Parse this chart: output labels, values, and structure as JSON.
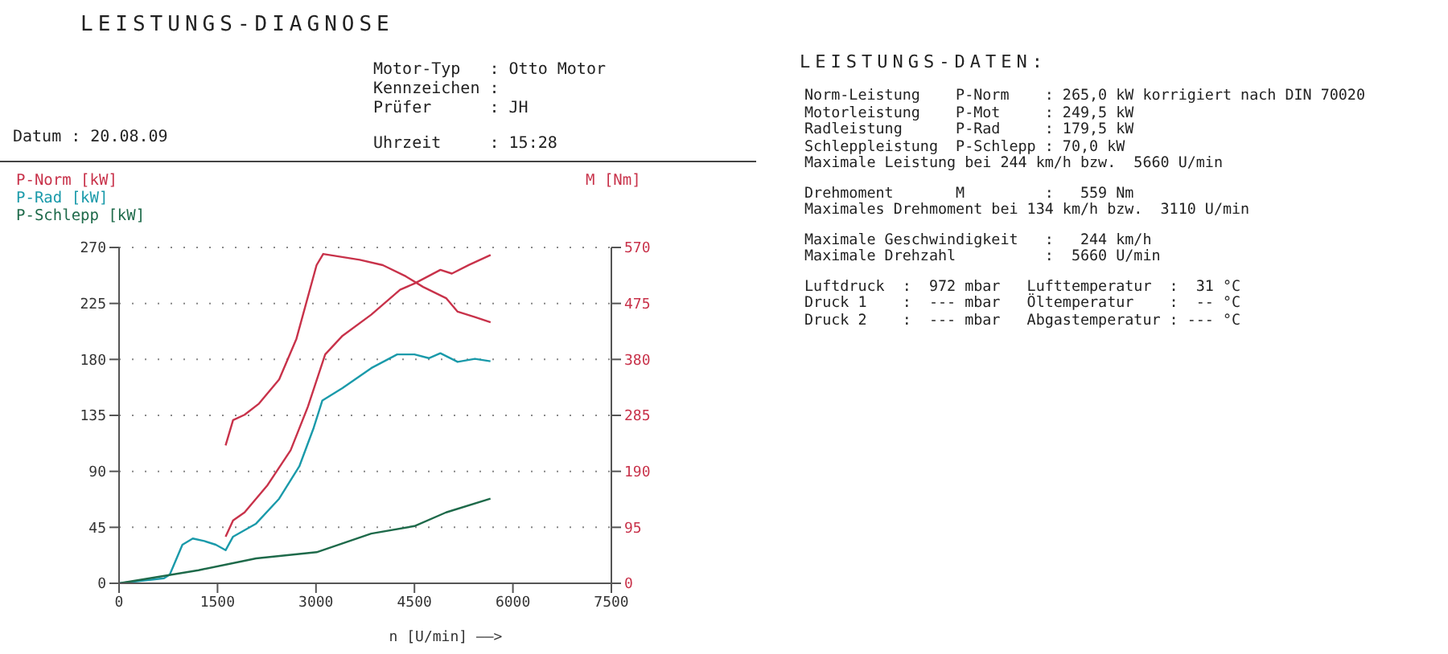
{
  "chart_data": {
    "type": "line",
    "title": "LEISTUNGS-DIAGNOSE",
    "subtitle": "LEISTUNGS-DATEN:",
    "xlabel": "n [U/min] ——>",
    "y2label": "M [Nm]",
    "annotations": [
      "Datum : 20.08.09",
      "Motor-Typ   : Otto Motor",
      "Kennzeichen :",
      "Prüfer      : JH",
      "Uhrzeit     : 15:28",
      "Norm-Leistung    P-Norm    : 265,0 kW korrigiert nach DIN 70020",
      "Motorleistung    P-Mot     : 249,5 kW",
      "Radleistung      P-Rad     : 179,5 kW",
      "Schleppleistung  P-Schlepp : 70,0 kW",
      "Maximale Leistung bei 244 km/h bzw.  5660 U/min",
      "Drehmoment       M         :   559 Nm",
      "Maximales Drehmoment bei 134 km/h bzw.  3110 U/min",
      "Maximale Geschwindigkeit   :   244 km/h",
      "Maximale Drehzahl          :  5660 U/min",
      "Luftdruck  :  972 mbar   Lufttemperatur  :  31 °C",
      "Druck 1    :  --- mbar   Öltemperatur    :  -- °C",
      "Druck 2    :  --- mbar   Abgastemperatur : --- °C"
    ],
    "xlim": [
      0,
      7500
    ],
    "xticks": [
      0,
      1500,
      3000,
      4500,
      6000,
      7500
    ],
    "ylim": [
      0,
      270
    ],
    "yticks": [
      0,
      45,
      90,
      135,
      180,
      225,
      270
    ],
    "y2lim": [
      0,
      570
    ],
    "y2ticks": [
      0,
      95,
      190,
      285,
      380,
      475,
      570
    ],
    "grid": "y",
    "legend": "top",
    "marker": "none",
    "line_style": "solid",
    "series": [
      {
        "name": "P-Norm [kW]",
        "color": "#c8324a",
        "x": [
          1623,
          1737,
          1912,
          2263,
          2614,
          2877,
          3140,
          3404,
          3842,
          4281,
          4500,
          4895,
          5070,
          5333,
          5660
        ],
        "values": [
          37.5,
          50.6,
          57,
          79,
          107,
          142,
          184,
          199,
          216,
          236,
          241,
          252,
          249,
          256,
          264
        ]
      },
      {
        "name": "P-Rad [kW]",
        "color": "#1a9aaa",
        "x": [
          0,
          684,
          772,
          965,
          1123,
          1298,
          1474,
          1623,
          1737,
          2088,
          2439,
          2746,
          2965,
          3097,
          3404,
          3842,
          4237,
          4500,
          4719,
          4895,
          5158,
          5421,
          5658
        ],
        "values": [
          0,
          4,
          7,
          31,
          36,
          34,
          31,
          26.6,
          37.5,
          48,
          68,
          94,
          125,
          147,
          157,
          173,
          184,
          184,
          181,
          185,
          178,
          180.5,
          178.5
        ]
      },
      {
        "name": "P-Schlepp [kW]",
        "color": "#1e6a4a",
        "x": [
          0,
          1210,
          2088,
          3009,
          3842,
          4500,
          4982,
          5658
        ],
        "values": [
          0,
          10.5,
          20,
          25,
          40,
          46,
          57,
          68
        ]
      },
      {
        "color": "#c8324a",
        "axis": "y2",
        "x": [
          1623,
          1737,
          1912,
          2132,
          2439,
          2702,
          3009,
          3110,
          3667,
          4018,
          4368,
          4632,
          4982,
          5158,
          5421,
          5660
        ],
        "values": [
          234,
          277,
          286,
          305,
          346,
          415,
          540,
          559,
          549,
          540,
          521,
          503,
          484,
          461,
          452,
          443
        ]
      }
    ]
  }
}
